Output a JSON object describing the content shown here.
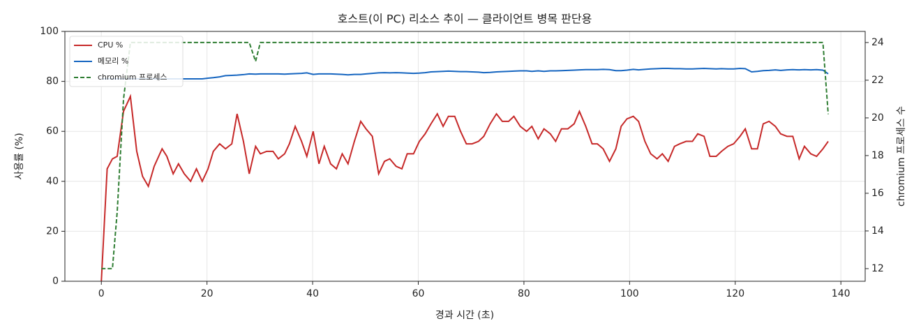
{
  "chart_data": {
    "type": "line",
    "title": "호스트(이 PC) 리소스 추이 — 클라이언트 병목 판단용",
    "x_label": "경과 시간 (초)",
    "y_label": "사용률 (%)",
    "y2_label": "chromium 프로세스 수",
    "x": [
      0,
      1.1,
      2.1,
      3.0,
      4.2,
      5.5,
      6.7,
      7.8,
      8.9,
      10.0,
      11.5,
      12.4,
      13.6,
      14.6,
      15.7,
      16.9,
      18.0,
      19.1,
      20.2,
      21.2,
      22.4,
      23.5,
      24.7,
      25.7,
      26.9,
      28.0,
      29.2,
      30.1,
      31.3,
      32.5,
      33.5,
      34.7,
      35.6,
      36.7,
      37.9,
      38.9,
      40.1,
      41.2,
      42.2,
      43.4,
      44.5,
      45.6,
      46.7,
      47.9,
      49.1,
      50.1,
      51.3,
      52.5,
      53.6,
      54.6,
      55.8,
      56.9,
      57.9,
      59.1,
      60.2,
      61.3,
      62.4,
      63.6,
      64.7,
      65.7,
      66.9,
      68.0,
      69.1,
      70.2,
      71.4,
      72.4,
      73.6,
      74.8,
      75.9,
      77.1,
      78.1,
      79.3,
      80.5,
      81.5,
      82.7,
      83.8,
      85.0,
      86.0,
      87.1,
      88.3,
      89.5,
      90.5,
      91.7,
      92.9,
      93.9,
      95.0,
      96.2,
      97.4,
      98.4,
      99.5,
      100.7,
      101.7,
      102.9,
      104.0,
      105.2,
      106.2,
      107.3,
      108.5,
      109.5,
      110.7,
      111.9,
      112.9,
      114.1,
      115.2,
      116.4,
      117.4,
      118.6,
      119.7,
      120.9,
      121.9,
      123.1,
      124.2,
      125.3,
      126.4,
      127.6,
      128.6,
      129.8,
      130.9,
      132.1,
      133.1,
      134.3,
      135.4,
      136.6,
      137.6
    ],
    "series": [
      {
        "name": "CPU %",
        "color": "#c62828",
        "linestyle": "solid",
        "axis": "y",
        "values": [
          0,
          45,
          49,
          50,
          68,
          74,
          52,
          42,
          38,
          46,
          53,
          50,
          43,
          47,
          43,
          40,
          45,
          40,
          45,
          52,
          55,
          53,
          55,
          67,
          56,
          43,
          54,
          51,
          52,
          52,
          49,
          51,
          55,
          62,
          56,
          50,
          60,
          47,
          54,
          47,
          45,
          51,
          47,
          56,
          64,
          61,
          58,
          43,
          48,
          49,
          46,
          45,
          51,
          51,
          56,
          59,
          63,
          67,
          62,
          66,
          66,
          60,
          55,
          55,
          56,
          58,
          63,
          67,
          64,
          64,
          66,
          62,
          60,
          62,
          57,
          61,
          59,
          56,
          61,
          61,
          63,
          68,
          62,
          55,
          55,
          53,
          48,
          53,
          62,
          65,
          66,
          64,
          56,
          51,
          49,
          51,
          48,
          54,
          55,
          56,
          56,
          59,
          58,
          50,
          50,
          52,
          54,
          55,
          58,
          61,
          53,
          53,
          63,
          64,
          62,
          59,
          58,
          58,
          49,
          54,
          51,
          50,
          53,
          56
        ]
      },
      {
        "name": "메모리 %",
        "color": "#1565c0",
        "linestyle": "solid",
        "axis": "y",
        "values": [
          81,
          81,
          81,
          81,
          81,
          81,
          81,
          81,
          81,
          81,
          81,
          81,
          81,
          81,
          81,
          81,
          81,
          81,
          81.3,
          81.5,
          81.8,
          82.3,
          82.4,
          82.5,
          82.7,
          83,
          82.9,
          83,
          83,
          83,
          83,
          82.9,
          83,
          83.1,
          83.2,
          83.4,
          82.8,
          83,
          83,
          83,
          82.9,
          82.8,
          82.6,
          82.8,
          82.8,
          83,
          83.2,
          83.4,
          83.5,
          83.4,
          83.5,
          83.4,
          83.3,
          83.2,
          83.3,
          83.5,
          83.8,
          83.9,
          84,
          84.1,
          84,
          83.9,
          83.9,
          83.8,
          83.7,
          83.5,
          83.6,
          83.8,
          83.9,
          84,
          84.1,
          84.2,
          84.2,
          84,
          84.2,
          84,
          84.2,
          84.2,
          84.3,
          84.4,
          84.5,
          84.6,
          84.7,
          84.7,
          84.7,
          84.8,
          84.7,
          84.3,
          84.3,
          84.5,
          84.8,
          84.6,
          84.8,
          85,
          85.1,
          85.2,
          85.2,
          85.1,
          85.1,
          85,
          85,
          85.1,
          85.2,
          85.1,
          85,
          85.1,
          85,
          85,
          85.2,
          85.1,
          83.8,
          84,
          84.3,
          84.4,
          84.6,
          84.4,
          84.6,
          84.7,
          84.6,
          84.7,
          84.6,
          84.7,
          84.5,
          83
        ]
      },
      {
        "name": "chromium 프로세스",
        "color": "#2e7d32",
        "linestyle": "dashed",
        "axis": "y2",
        "values": [
          12,
          12,
          12,
          15,
          21,
          24,
          24,
          24,
          24,
          24,
          24,
          24,
          24,
          24,
          24,
          24,
          24,
          24,
          24,
          24,
          24,
          24,
          24,
          24,
          24,
          24,
          23,
          24,
          24,
          24,
          24,
          24,
          24,
          24,
          24,
          24,
          24,
          24,
          24,
          24,
          24,
          24,
          24,
          24,
          24,
          24,
          24,
          24,
          24,
          24,
          24,
          24,
          24,
          24,
          24,
          24,
          24,
          24,
          24,
          24,
          24,
          24,
          24,
          24,
          24,
          24,
          24,
          24,
          24,
          24,
          24,
          24,
          24,
          24,
          24,
          24,
          24,
          24,
          24,
          24,
          24,
          24,
          24,
          24,
          24,
          24,
          24,
          24,
          24,
          24,
          24,
          24,
          24,
          24,
          24,
          24,
          24,
          24,
          24,
          24,
          24,
          24,
          24,
          24,
          24,
          24,
          24,
          24,
          24,
          24,
          24,
          24,
          24,
          24,
          24,
          24,
          24,
          24,
          24,
          24,
          24,
          24,
          24,
          20.2
        ]
      }
    ],
    "xlim": [
      -6.9,
      144.6
    ],
    "xticks": [
      0,
      20,
      40,
      60,
      80,
      100,
      120,
      140
    ],
    "ylim": [
      0,
      100
    ],
    "yticks": [
      0,
      20,
      40,
      60,
      80,
      100
    ],
    "y2lim": [
      11.33,
      24.59
    ],
    "y2ticks": [
      12,
      14,
      16,
      18,
      20,
      22,
      24
    ],
    "grid": true,
    "legend": "upper-left"
  }
}
